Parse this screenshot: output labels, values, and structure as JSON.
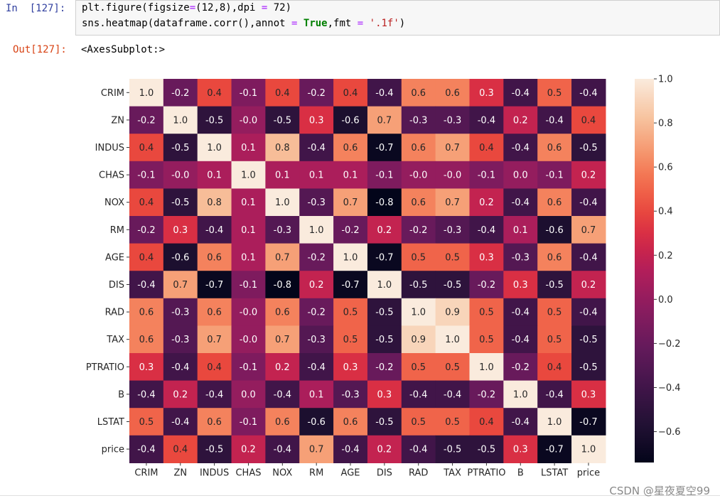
{
  "cell_in": {
    "prompt": "In  [127]:"
  },
  "code": {
    "line1": {
      "a": "plt.figure(figsize",
      "b": "=",
      "c": "(12,8),dpi ",
      "d": "=",
      "e": " 72)"
    },
    "line2": {
      "a": "sns.heatmap(dataframe.corr(),annot ",
      "b": "=",
      "c": " ",
      "d": "True",
      "e": ",fmt ",
      "f": "=",
      "g": " ",
      "h": "'.1f'",
      "i": ")"
    }
  },
  "cell_out": {
    "prompt": "Out[127]:",
    "text": "<AxesSubplot:>"
  },
  "watermark": "CSDN @星夜夏空99",
  "chart_data": {
    "type": "heatmap",
    "rows": [
      "CRIM",
      "ZN",
      "INDUS",
      "CHAS",
      "NOX",
      "RM",
      "AGE",
      "DIS",
      "RAD",
      "TAX",
      "PTRATIO",
      "B",
      "LSTAT",
      "price"
    ],
    "cols": [
      "CRIM",
      "ZN",
      "INDUS",
      "CHAS",
      "NOX",
      "RM",
      "AGE",
      "DIS",
      "RAD",
      "TAX",
      "PTRATIO",
      "B",
      "LSTAT",
      "price"
    ],
    "values": [
      [
        1.0,
        -0.2,
        0.4,
        -0.1,
        0.4,
        -0.2,
        0.4,
        -0.4,
        0.6,
        0.6,
        0.3,
        -0.4,
        0.5,
        -0.4
      ],
      [
        -0.2,
        1.0,
        -0.5,
        -0.0,
        -0.5,
        0.3,
        -0.6,
        0.7,
        -0.3,
        -0.3,
        -0.4,
        0.2,
        -0.4,
        0.4
      ],
      [
        0.4,
        -0.5,
        1.0,
        0.1,
        0.8,
        -0.4,
        0.6,
        -0.7,
        0.6,
        0.7,
        0.4,
        -0.4,
        0.6,
        -0.5
      ],
      [
        -0.1,
        -0.0,
        0.1,
        1.0,
        0.1,
        0.1,
        0.1,
        -0.1,
        -0.0,
        -0.0,
        -0.1,
        0.0,
        -0.1,
        0.2
      ],
      [
        0.4,
        -0.5,
        0.8,
        0.1,
        1.0,
        -0.3,
        0.7,
        -0.8,
        0.6,
        0.7,
        0.2,
        -0.4,
        0.6,
        -0.4
      ],
      [
        -0.2,
        0.3,
        -0.4,
        0.1,
        -0.3,
        1.0,
        -0.2,
        0.2,
        -0.2,
        -0.3,
        -0.4,
        0.1,
        -0.6,
        0.7
      ],
      [
        0.4,
        -0.6,
        0.6,
        0.1,
        0.7,
        -0.2,
        1.0,
        -0.7,
        0.5,
        0.5,
        0.3,
        -0.3,
        0.6,
        -0.4
      ],
      [
        -0.4,
        0.7,
        -0.7,
        -0.1,
        -0.8,
        0.2,
        -0.7,
        1.0,
        -0.5,
        -0.5,
        -0.2,
        0.3,
        -0.5,
        0.2
      ],
      [
        0.6,
        -0.3,
        0.6,
        -0.0,
        0.6,
        -0.2,
        0.5,
        -0.5,
        1.0,
        0.9,
        0.5,
        -0.4,
        0.5,
        -0.4
      ],
      [
        0.6,
        -0.3,
        0.7,
        -0.0,
        0.7,
        -0.3,
        0.5,
        -0.5,
        0.9,
        1.0,
        0.5,
        -0.4,
        0.5,
        -0.5
      ],
      [
        0.3,
        -0.4,
        0.4,
        -0.1,
        0.2,
        -0.4,
        0.3,
        -0.2,
        0.5,
        0.5,
        1.0,
        -0.2,
        0.4,
        -0.5
      ],
      [
        -0.4,
        0.2,
        -0.4,
        0.0,
        -0.4,
        0.1,
        -0.3,
        0.3,
        -0.4,
        -0.4,
        -0.2,
        1.0,
        -0.4,
        0.3
      ],
      [
        0.5,
        -0.4,
        0.6,
        -0.1,
        0.6,
        -0.6,
        0.6,
        -0.5,
        0.5,
        0.5,
        0.4,
        -0.4,
        1.0,
        -0.7
      ],
      [
        -0.4,
        0.4,
        -0.5,
        0.2,
        -0.4,
        0.7,
        -0.4,
        0.2,
        -0.4,
        -0.5,
        -0.5,
        0.3,
        -0.7,
        1.0
      ]
    ],
    "colorbar": {
      "ticks": [
        1.0,
        0.8,
        0.6,
        0.4,
        0.2,
        0.0,
        -0.2,
        -0.4,
        -0.6
      ],
      "tick_labels": [
        "1.0",
        "0.8",
        "0.6",
        "0.4",
        "0.2",
        "0.0",
        "−0.2",
        "−0.4",
        "−0.6"
      ],
      "range": [
        -0.74,
        1.0
      ]
    },
    "colormap": "rocket",
    "annot_fmt": ".1f"
  }
}
